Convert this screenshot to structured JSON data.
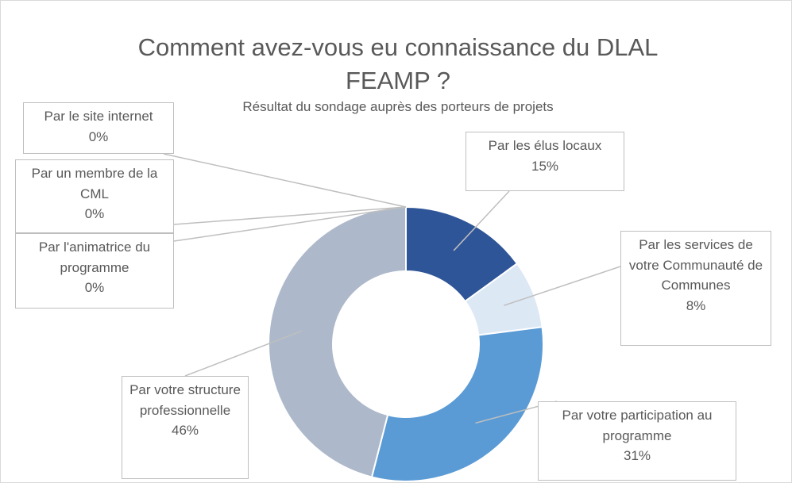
{
  "chart_data": {
    "type": "donut",
    "title": "Comment avez-vous eu connaissance du DLAL FEAMP ?",
    "subtitle": "Résultat du sondage auprès des porteurs de projets",
    "categories": [
      "Par les élus locaux",
      "Par les services de votre Communauté de Communes",
      "Par votre participation au programme",
      "Par votre structure professionnelle",
      "Par l'animatrice du programme",
      "Par un membre de la CML",
      "Par le site internet"
    ],
    "values": [
      15,
      8,
      31,
      46,
      0,
      0,
      0
    ],
    "value_labels": [
      "15%",
      "8%",
      "31%",
      "46%",
      "0%",
      "0%",
      "0%"
    ],
    "colors": [
      "#2e5597",
      "#dde8f5",
      "#5b9bd5",
      "#adb9ca",
      "#a5a5a5",
      "#7f7f7f",
      "#264478"
    ]
  }
}
